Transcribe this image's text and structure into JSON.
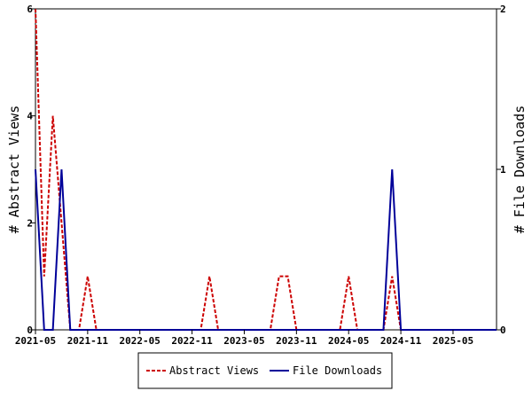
{
  "chart_data": {
    "type": "line",
    "x_type": "month",
    "x_range": [
      "2021-05",
      "2025-10"
    ],
    "x_tick_labels": [
      "2021-05",
      "2021-11",
      "2022-05",
      "2022-11",
      "2023-05",
      "2023-11",
      "2024-05",
      "2024-11",
      "2025-05"
    ],
    "y_left": {
      "label": "# Abstract Views",
      "range": [
        0,
        6
      ],
      "ticks": [
        "0",
        "2",
        "4",
        "6"
      ]
    },
    "y_right": {
      "label": "# File Downloads",
      "range": [
        0,
        2
      ],
      "ticks": [
        "0",
        "1",
        "2"
      ]
    },
    "grid": false,
    "legend_position": "bottom",
    "series": [
      {
        "name": "Abstract Views",
        "axis": "left",
        "color": "#cc0000",
        "dash": "dashed",
        "points": [
          [
            "2021-05",
            6
          ],
          [
            "2021-06",
            1
          ],
          [
            "2021-07",
            4
          ],
          [
            "2021-08",
            2
          ],
          [
            "2021-09",
            0
          ],
          [
            "2021-10",
            0
          ],
          [
            "2021-11",
            1
          ],
          [
            "2021-12",
            0
          ],
          [
            "2022-01",
            0
          ],
          [
            "2022-02",
            0
          ],
          [
            "2022-03",
            0
          ],
          [
            "2022-04",
            0
          ],
          [
            "2022-05",
            0
          ],
          [
            "2022-06",
            0
          ],
          [
            "2022-07",
            0
          ],
          [
            "2022-08",
            0
          ],
          [
            "2022-09",
            0
          ],
          [
            "2022-10",
            0
          ],
          [
            "2022-11",
            0
          ],
          [
            "2022-12",
            0
          ],
          [
            "2023-01",
            1
          ],
          [
            "2023-02",
            0
          ],
          [
            "2023-03",
            0
          ],
          [
            "2023-04",
            0
          ],
          [
            "2023-05",
            0
          ],
          [
            "2023-06",
            0
          ],
          [
            "2023-07",
            0
          ],
          [
            "2023-08",
            0
          ],
          [
            "2023-09",
            1
          ],
          [
            "2023-10",
            1
          ],
          [
            "2023-11",
            0
          ],
          [
            "2023-12",
            0
          ],
          [
            "2024-01",
            0
          ],
          [
            "2024-02",
            0
          ],
          [
            "2024-03",
            0
          ],
          [
            "2024-04",
            0
          ],
          [
            "2024-05",
            1
          ],
          [
            "2024-06",
            0
          ],
          [
            "2024-07",
            0
          ],
          [
            "2024-08",
            0
          ],
          [
            "2024-09",
            0
          ],
          [
            "2024-10",
            1
          ],
          [
            "2024-11",
            0
          ],
          [
            "2024-12",
            0
          ],
          [
            "2025-01",
            0
          ],
          [
            "2025-02",
            0
          ],
          [
            "2025-03",
            0
          ],
          [
            "2025-04",
            0
          ],
          [
            "2025-05",
            0
          ],
          [
            "2025-06",
            0
          ],
          [
            "2025-07",
            0
          ],
          [
            "2025-08",
            0
          ],
          [
            "2025-09",
            0
          ],
          [
            "2025-10",
            0
          ]
        ]
      },
      {
        "name": "File Downloads",
        "axis": "right",
        "color": "#000099",
        "dash": "solid",
        "points": [
          [
            "2021-05",
            1
          ],
          [
            "2021-06",
            0
          ],
          [
            "2021-07",
            0
          ],
          [
            "2021-08",
            1
          ],
          [
            "2021-09",
            0
          ],
          [
            "2021-10",
            0
          ],
          [
            "2021-11",
            0
          ],
          [
            "2021-12",
            0
          ],
          [
            "2022-01",
            0
          ],
          [
            "2022-02",
            0
          ],
          [
            "2022-03",
            0
          ],
          [
            "2022-04",
            0
          ],
          [
            "2022-05",
            0
          ],
          [
            "2022-06",
            0
          ],
          [
            "2022-07",
            0
          ],
          [
            "2022-08",
            0
          ],
          [
            "2022-09",
            0
          ],
          [
            "2022-10",
            0
          ],
          [
            "2022-11",
            0
          ],
          [
            "2022-12",
            0
          ],
          [
            "2023-01",
            0
          ],
          [
            "2023-02",
            0
          ],
          [
            "2023-03",
            0
          ],
          [
            "2023-04",
            0
          ],
          [
            "2023-05",
            0
          ],
          [
            "2023-06",
            0
          ],
          [
            "2023-07",
            0
          ],
          [
            "2023-08",
            0
          ],
          [
            "2023-09",
            0
          ],
          [
            "2023-10",
            0
          ],
          [
            "2023-11",
            0
          ],
          [
            "2023-12",
            0
          ],
          [
            "2024-01",
            0
          ],
          [
            "2024-02",
            0
          ],
          [
            "2024-03",
            0
          ],
          [
            "2024-04",
            0
          ],
          [
            "2024-05",
            0
          ],
          [
            "2024-06",
            0
          ],
          [
            "2024-07",
            0
          ],
          [
            "2024-08",
            0
          ],
          [
            "2024-09",
            0
          ],
          [
            "2024-10",
            1
          ],
          [
            "2024-11",
            0
          ],
          [
            "2024-12",
            0
          ],
          [
            "2025-01",
            0
          ],
          [
            "2025-02",
            0
          ],
          [
            "2025-03",
            0
          ],
          [
            "2025-04",
            0
          ],
          [
            "2025-05",
            0
          ],
          [
            "2025-06",
            0
          ],
          [
            "2025-07",
            0
          ],
          [
            "2025-08",
            0
          ],
          [
            "2025-09",
            0
          ],
          [
            "2025-10",
            0
          ]
        ]
      }
    ]
  }
}
